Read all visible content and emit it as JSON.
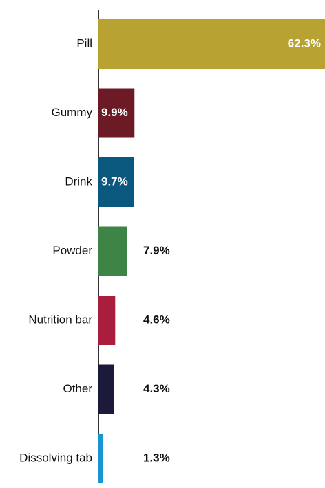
{
  "chart_data": {
    "type": "bar",
    "orientation": "horizontal",
    "categories": [
      "Pill",
      "Gummy",
      "Drink",
      "Powder",
      "Nutrition bar",
      "Other",
      "Dissolving tab"
    ],
    "values": [
      62.3,
      9.9,
      9.7,
      7.9,
      4.6,
      4.3,
      1.3
    ],
    "value_labels": [
      "62.3%",
      "9.9%",
      "9.7%",
      "7.9%",
      "4.6%",
      "4.3%",
      "1.3%"
    ],
    "colors": [
      "#B8A232",
      "#6B1A26",
      "#0B587E",
      "#3E8447",
      "#A81E3C",
      "#1C1A3A",
      "#1A95D3"
    ],
    "xlim": [
      0,
      62.3
    ],
    "grid": false,
    "legend": "none"
  }
}
